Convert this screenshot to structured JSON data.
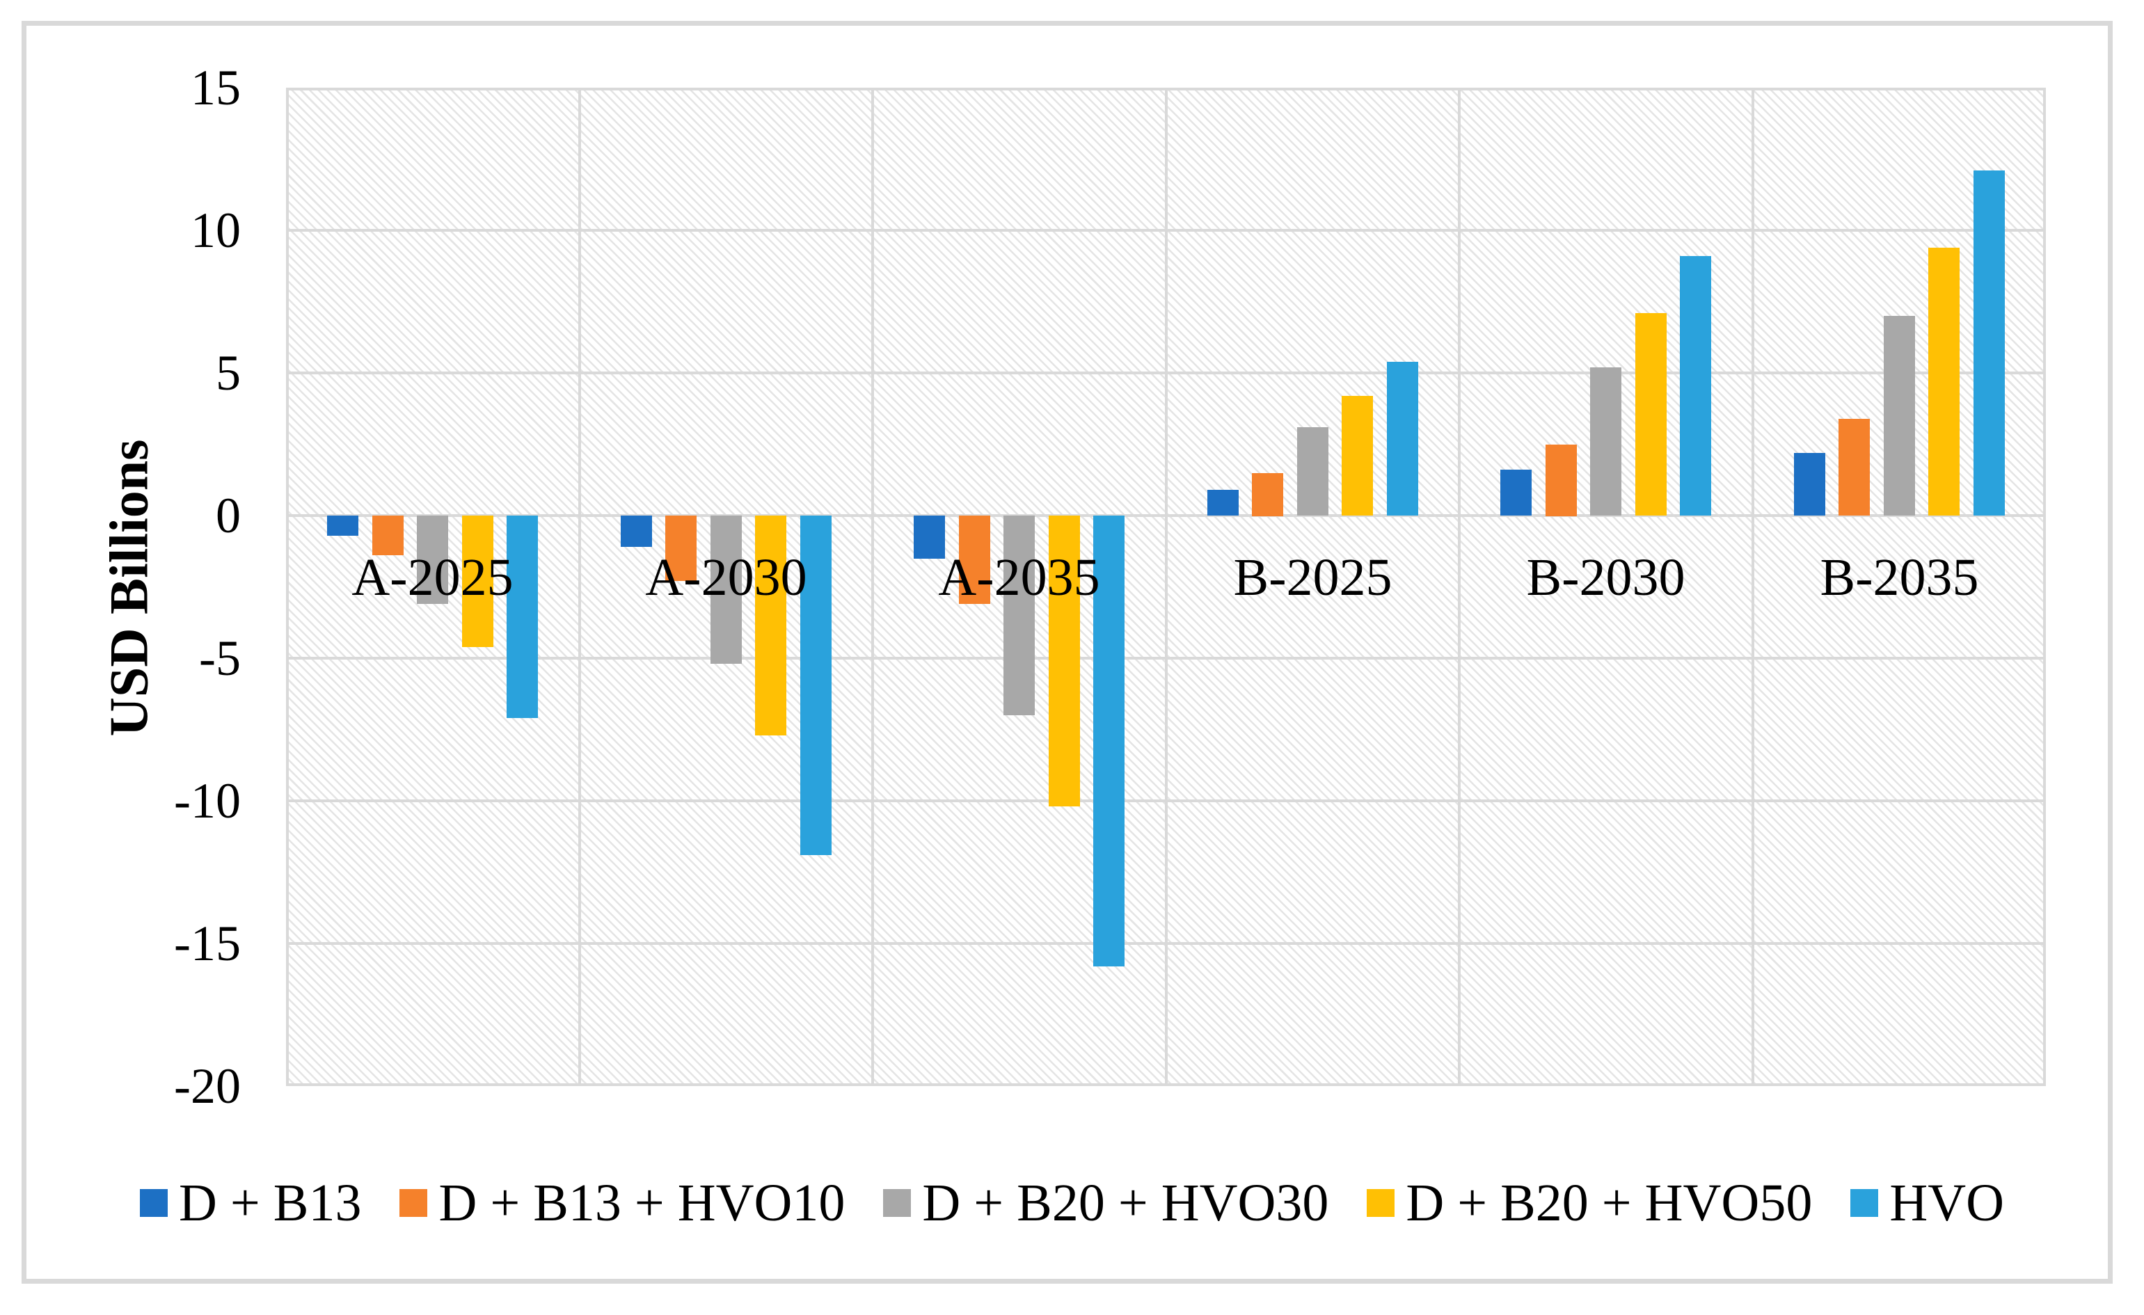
{
  "chart_data": {
    "type": "bar",
    "title": "",
    "ylabel": "USD Billions",
    "xlabel": "",
    "categories": [
      "A-2025",
      "A-2030",
      "A-2035",
      "B-2025",
      "B-2030",
      "B-2035"
    ],
    "series": [
      {
        "name": "D + B13",
        "color": "#1d70c4",
        "values": [
          -0.7,
          -1.1,
          -1.5,
          0.9,
          1.6,
          2.2
        ]
      },
      {
        "name": "D + B13 + HVO10",
        "color": "#f5812b",
        "values": [
          -1.4,
          -2.3,
          -3.1,
          1.5,
          2.5,
          3.4
        ]
      },
      {
        "name": "D + B20 + HVO30",
        "color": "#a8a8a8",
        "values": [
          -3.1,
          -5.2,
          -7.0,
          3.1,
          5.2,
          7.0
        ]
      },
      {
        "name": "D + B20 + HVO50",
        "color": "#ffc004",
        "values": [
          -4.6,
          -7.7,
          -10.2,
          4.2,
          7.1,
          9.4
        ]
      },
      {
        "name": "HVO",
        "color": "#2aa2dc",
        "values": [
          -7.1,
          -11.9,
          -15.8,
          5.4,
          9.1,
          12.1
        ]
      }
    ],
    "ylim": [
      -20,
      15
    ],
    "yticks": [
      15,
      10,
      5,
      0,
      -5,
      -10,
      -15,
      -20
    ],
    "grid": true,
    "plot_background": "diagonal-hatch",
    "gridline_color": "#d9d9d9",
    "legend_position": "bottom"
  }
}
